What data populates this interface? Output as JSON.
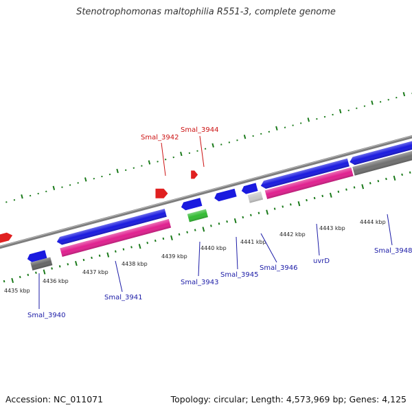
{
  "title": "Stenotrophomonas maltophilia R551-3, complete genome",
  "footer": {
    "accession": "Accession: NC_011071",
    "genome_info": "Topology: circular; Length: 4,573,969 bp; Genes: 4,125"
  },
  "colors": {
    "backbone": "#808080",
    "tick": "#1a7a1a",
    "cds_blue": "#1a1adf",
    "cds_magenta": "#e0208f",
    "cds_gray": "#707070",
    "cds_lightgray": "#c8c8c8",
    "cds_green": "#33bb33",
    "cds_red": "#e02020",
    "label_blue": "#1a1aa6",
    "label_red": "#cc1111"
  },
  "scale": {
    "ticks": [
      {
        "label": "4435 kbp"
      },
      {
        "label": "4436 kbp"
      },
      {
        "label": "4437 kbp"
      },
      {
        "label": "4438 kbp"
      },
      {
        "label": "4439 kbp"
      },
      {
        "label": "4440 kbp"
      },
      {
        "label": "4441 kbp"
      },
      {
        "label": "4442 kbp"
      },
      {
        "label": "4443 kbp"
      },
      {
        "label": "4444 kbp"
      }
    ]
  },
  "gene_labels": [
    {
      "text": "Smal_3940",
      "color": "label_blue"
    },
    {
      "text": "Smal_3941",
      "color": "label_blue"
    },
    {
      "text": "Smal_3942",
      "color": "label_red"
    },
    {
      "text": "Smal_3943",
      "color": "label_blue"
    },
    {
      "text": "Smal_3944",
      "color": "label_red"
    },
    {
      "text": "Smal_3945",
      "color": "label_blue"
    },
    {
      "text": "Smal_3946",
      "color": "label_blue"
    },
    {
      "text": "uvrD",
      "color": "label_blue"
    },
    {
      "text": "Smal_3948",
      "color": "label_blue"
    }
  ]
}
